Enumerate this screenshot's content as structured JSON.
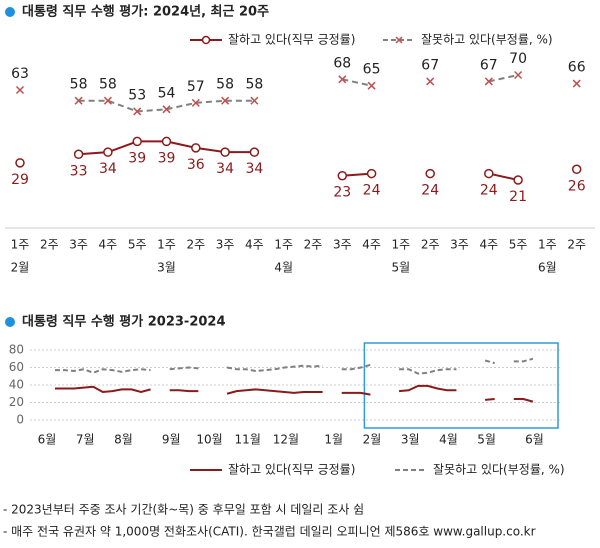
{
  "chart_data": [
    {
      "type": "line",
      "title": "대통령 직무 수행 평가: 2024년, 최근 20주",
      "categories": [
        "1주",
        "2주",
        "3주",
        "4주",
        "5주",
        "1주",
        "2주",
        "3주",
        "4주",
        "1주",
        "2주",
        "3주",
        "4주",
        "1주",
        "2주",
        "3주",
        "4주",
        "5주",
        "1주",
        "2주"
      ],
      "month_labels": [
        "2월",
        null,
        null,
        null,
        null,
        "3월",
        null,
        null,
        null,
        "4월",
        null,
        null,
        null,
        "5월",
        null,
        null,
        null,
        null,
        "6월",
        null
      ],
      "series": [
        {
          "name": "잘하고 있다(직무 긍정률)",
          "color": "#8b1a1a",
          "values": [
            29,
            null,
            33,
            34,
            39,
            39,
            36,
            34,
            34,
            null,
            null,
            23,
            24,
            null,
            24,
            null,
            24,
            21,
            null,
            26
          ]
        },
        {
          "name": "잘못하고 있다(부정률, %)",
          "color": "#808080",
          "marker_color": "#c0504d",
          "values": [
            63,
            null,
            58,
            58,
            53,
            54,
            57,
            58,
            58,
            null,
            null,
            68,
            65,
            null,
            67,
            null,
            67,
            70,
            null,
            66
          ]
        }
      ]
    },
    {
      "type": "line",
      "title": "대통령 직무 수행 평가 2023-2024",
      "categories": [
        "6월",
        null,
        null,
        null,
        "7월",
        null,
        null,
        null,
        "8월",
        null,
        null,
        null,
        null,
        "9월",
        null,
        null,
        null,
        "10월",
        null,
        null,
        null,
        "11월",
        null,
        null,
        null,
        "12월",
        null,
        null,
        null,
        null,
        "1월",
        null,
        null,
        null,
        "2월",
        null,
        null,
        null,
        "3월",
        null,
        null,
        null,
        "4월",
        null,
        null,
        null,
        "5월",
        null,
        null,
        null,
        null,
        "6월",
        null
      ],
      "ylim": [
        0,
        80
      ],
      "yticks": [
        0,
        20,
        40,
        60,
        80
      ],
      "grid": true,
      "series": [
        {
          "name": "잘하고 있다(직무 긍정률)",
          "color": "#8b1a1a",
          "values": [
            36,
            36,
            36,
            37,
            38,
            32,
            33,
            35,
            35,
            32,
            35,
            null,
            34,
            34,
            33,
            33,
            null,
            null,
            30,
            33,
            34,
            35,
            34,
            33,
            32,
            31,
            32,
            32,
            32,
            null,
            31,
            31,
            31,
            29,
            null,
            null,
            33,
            34,
            39,
            39,
            36,
            34,
            34,
            null,
            null,
            23,
            24,
            null,
            24,
            24,
            21,
            null,
            26
          ]
        },
        {
          "name": "잘못하고 있다(부정률, %)",
          "color": "#808080",
          "values": [
            57,
            57,
            56,
            58,
            54,
            58,
            57,
            55,
            57,
            58,
            57,
            null,
            58,
            59,
            60,
            59,
            null,
            null,
            60,
            58,
            58,
            56,
            57,
            58,
            60,
            61,
            62,
            61,
            62,
            null,
            58,
            58,
            60,
            63,
            null,
            null,
            58,
            58,
            53,
            54,
            57,
            58,
            58,
            null,
            null,
            68,
            65,
            null,
            67,
            67,
            70,
            null,
            66
          ]
        }
      ]
    }
  ],
  "notes": [
    "- 2023년부터 주중 조사 기간(화~목) 중 후무일 포함 시 데일리 조사 쉼",
    "- 매주 전국 유권자 약 1,000명 전화조사(CATI). 한국갤럽 데일리 오피니언 제586호 www.gallup.co.kr"
  ]
}
